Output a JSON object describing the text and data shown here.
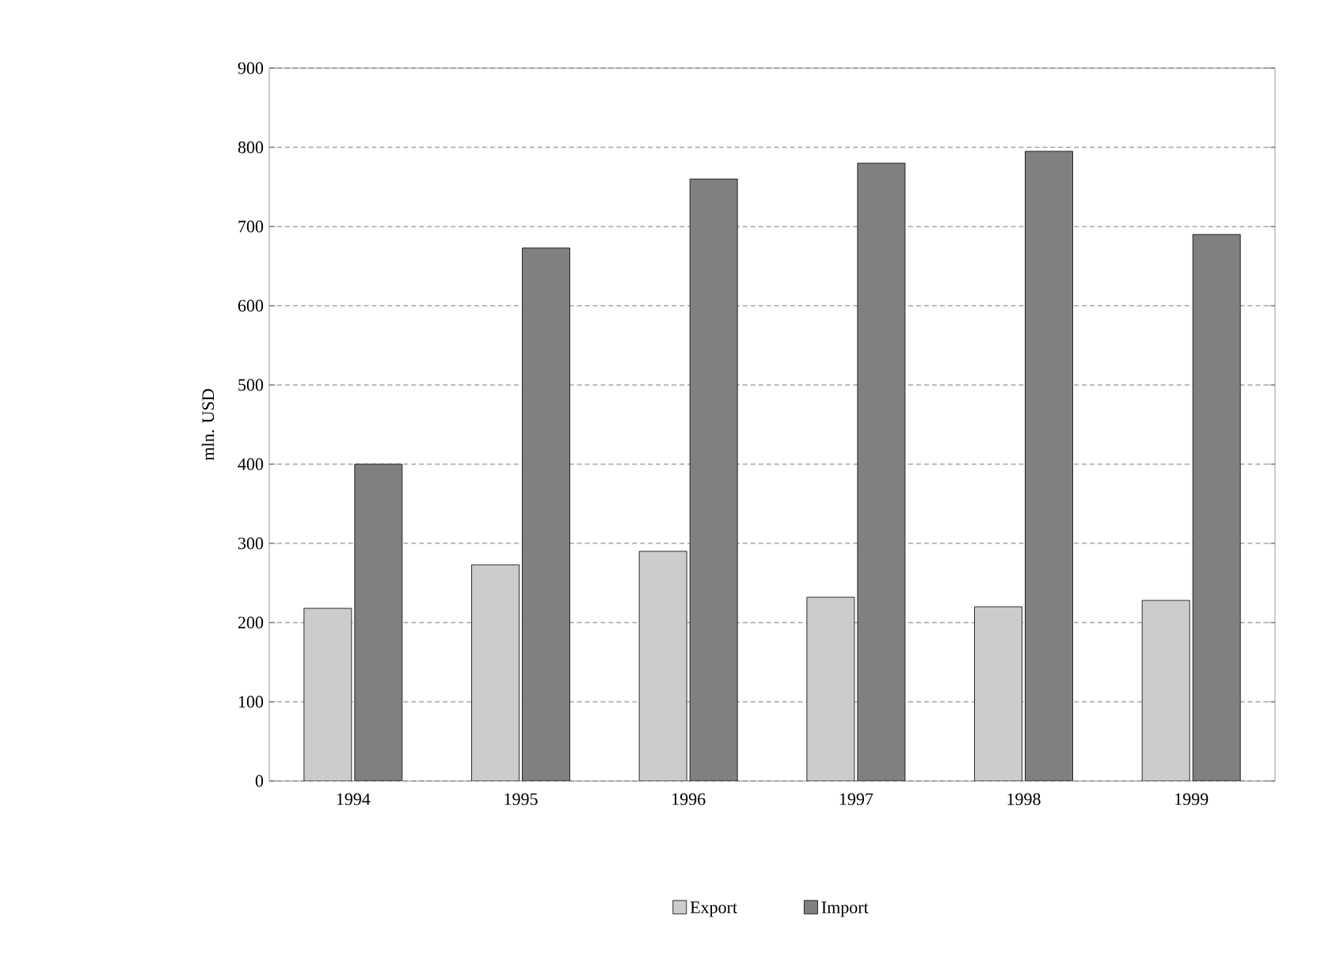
{
  "chart_data": {
    "type": "bar",
    "ylabel": "mln. USD",
    "categories": [
      "1994",
      "1995",
      "1996",
      "1997",
      "1998",
      "1999"
    ],
    "series": [
      {
        "name": "Export",
        "color": "#cccccc",
        "values": [
          218,
          273,
          290,
          232,
          220,
          228
        ]
      },
      {
        "name": "Import",
        "color": "#808080",
        "values": [
          400,
          673,
          760,
          780,
          795,
          690
        ]
      }
    ],
    "ylim": [
      0,
      900
    ],
    "yticks": [
      0,
      100,
      200,
      300,
      400,
      500,
      600,
      700,
      800,
      900
    ],
    "grid": "y",
    "legend": "bottom"
  }
}
